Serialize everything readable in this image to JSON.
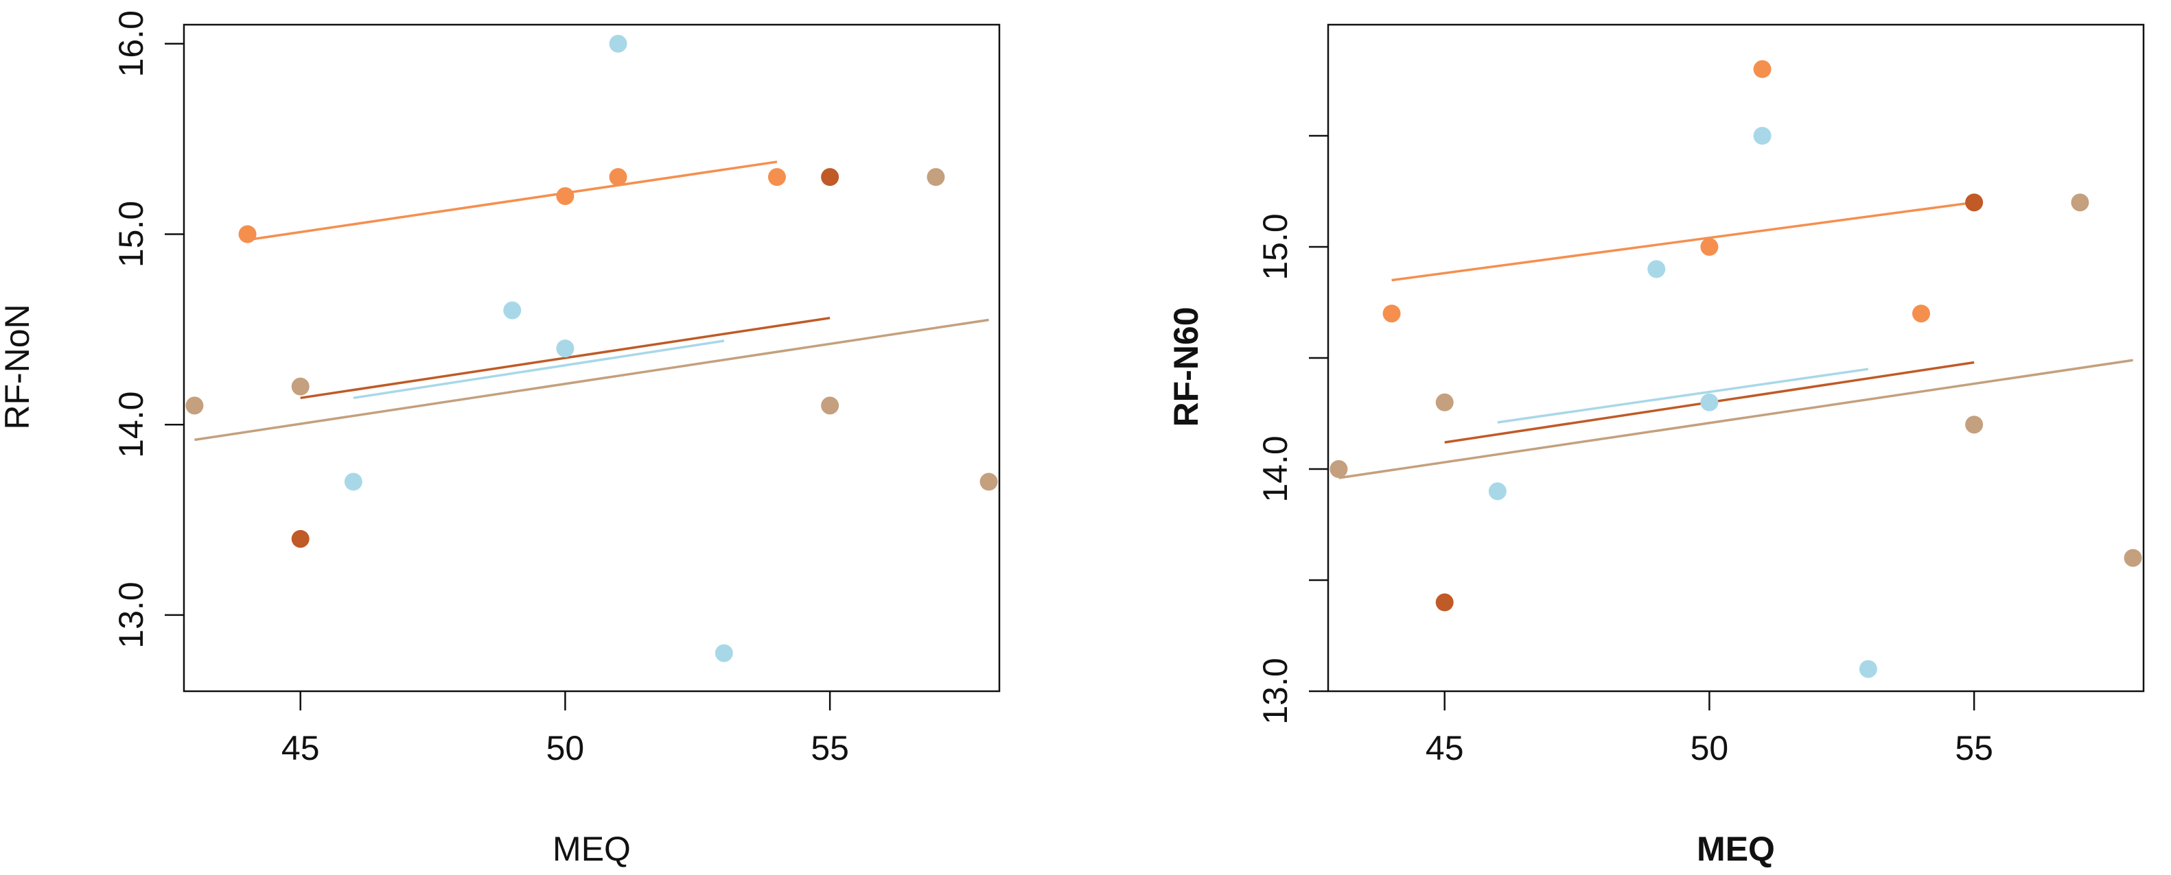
{
  "chart_data": [
    {
      "type": "scatter",
      "title": "",
      "xlabel": "MEQ",
      "ylabel": "RF-NoN",
      "label_bold": false,
      "xlim": [
        42.8,
        58.2
      ],
      "ylim": [
        12.6,
        16.1
      ],
      "xticks": [
        45,
        50,
        55
      ],
      "yticks": [
        13.0,
        14.0,
        15.0,
        16.0
      ],
      "ytick_labels": [
        "13.0",
        "14.0",
        "15.0",
        "16.0"
      ],
      "grid": false,
      "series": [
        {
          "color": "#F58F4E",
          "points": [
            [
              44,
              15.0
            ],
            [
              50,
              15.2
            ],
            [
              51,
              15.3
            ],
            [
              54,
              15.3
            ]
          ],
          "fit": [
            [
              44,
              14.97
            ],
            [
              54,
              15.38
            ]
          ]
        },
        {
          "color": "#A8D8E8",
          "points": [
            [
              46,
              13.7
            ],
            [
              49,
              14.6
            ],
            [
              50,
              14.4
            ],
            [
              51,
              16.0
            ],
            [
              53,
              12.8
            ]
          ],
          "fit": [
            [
              46,
              14.14
            ],
            [
              53,
              14.44
            ]
          ]
        },
        {
          "color": "#C05A26",
          "points": [
            [
              45,
              13.4
            ],
            [
              55,
              15.3
            ]
          ],
          "fit": [
            [
              45,
              14.14
            ],
            [
              55,
              14.56
            ]
          ]
        },
        {
          "color": "#C4A07E",
          "points": [
            [
              43,
              14.1
            ],
            [
              45,
              14.2
            ],
            [
              55,
              14.1
            ],
            [
              57,
              15.3
            ],
            [
              58,
              13.7
            ]
          ],
          "fit": [
            [
              43,
              13.92
            ],
            [
              58,
              14.55
            ]
          ]
        }
      ]
    },
    {
      "type": "scatter",
      "title": "",
      "xlabel": "MEQ",
      "ylabel": "RF-N60",
      "label_bold": true,
      "xlim": [
        42.8,
        58.2
      ],
      "ylim": [
        13.0,
        16.0
      ],
      "xticks": [
        45,
        50,
        55
      ],
      "yticks": [
        13.0,
        14.0,
        15.0
      ],
      "ytick_labels": [
        "13.0",
        "14.0",
        "15.0"
      ],
      "minor_yticks": [
        13.5,
        14.5,
        15.5
      ],
      "grid": false,
      "series": [
        {
          "color": "#F58F4E",
          "points": [
            [
              44,
              14.7
            ],
            [
              50,
              15.0
            ],
            [
              51,
              15.8
            ],
            [
              54,
              14.7
            ]
          ],
          "fit": [
            [
              44,
              14.85
            ],
            [
              55,
              15.2
            ]
          ]
        },
        {
          "color": "#A8D8E8",
          "points": [
            [
              46,
              13.9
            ],
            [
              49,
              14.9
            ],
            [
              50,
              14.3
            ],
            [
              51,
              15.5
            ],
            [
              53,
              13.1
            ]
          ],
          "fit": [
            [
              46,
              14.21
            ],
            [
              53,
              14.45
            ]
          ]
        },
        {
          "color": "#C05A26",
          "points": [
            [
              45,
              13.4
            ],
            [
              55,
              15.2
            ]
          ],
          "fit": [
            [
              45,
              14.12
            ],
            [
              55,
              14.48
            ]
          ]
        },
        {
          "color": "#C4A07E",
          "points": [
            [
              43,
              14.0
            ],
            [
              45,
              14.3
            ],
            [
              55,
              14.2
            ],
            [
              57,
              15.2
            ],
            [
              58,
              13.6
            ]
          ],
          "fit": [
            [
              43,
              13.96
            ],
            [
              58,
              14.49
            ]
          ]
        }
      ]
    }
  ]
}
